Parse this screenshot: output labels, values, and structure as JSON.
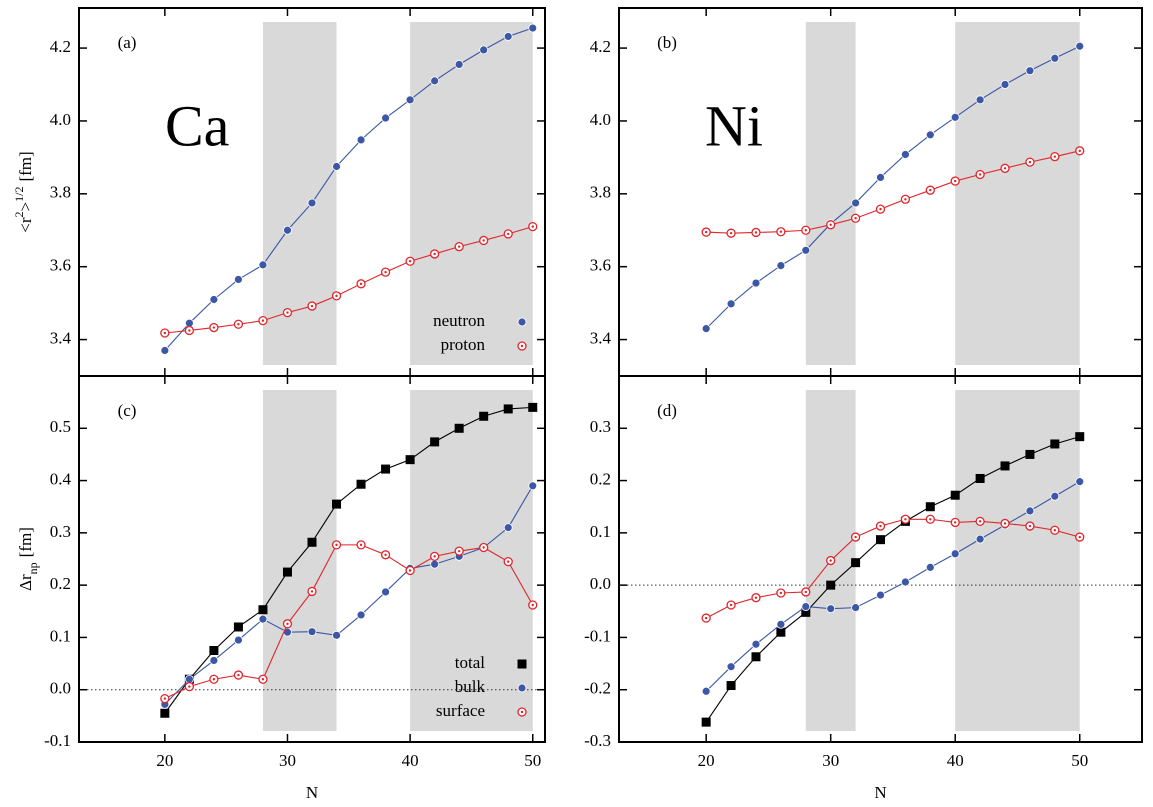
{
  "chart_data": [
    {
      "type": "line",
      "panel_label": "(a)",
      "element": "Ca",
      "ylabel": [
        "<r",
        "2",
        ">",
        "1/2",
        "[fm]"
      ],
      "x": [
        20,
        22,
        24,
        26,
        28,
        30,
        32,
        34,
        36,
        38,
        40,
        42,
        44,
        46,
        48,
        50
      ],
      "xlim": [
        13,
        51
      ],
      "xticks": [
        20,
        30,
        40,
        50
      ],
      "xtick_labels": false,
      "ylim": [
        3.3,
        4.31
      ],
      "yticks": [
        4.2,
        {
          "value": 4,
          "label": "4.0"
        },
        3.8,
        3.6,
        3.4
      ],
      "shaded": [
        [
          28,
          34
        ],
        [
          40,
          50
        ]
      ],
      "legend": "lower right",
      "series": [
        {
          "name": "neutron",
          "color": "#3b57a6",
          "marker": "circle-filled",
          "values": [
            3.37,
            3.445,
            3.51,
            3.565,
            3.605,
            3.7,
            3.775,
            3.875,
            3.948,
            4.008,
            4.058,
            4.11,
            4.155,
            4.195,
            4.232,
            4.255
          ]
        },
        {
          "name": "proton",
          "color": "#e0262b",
          "marker": "circle-dot",
          "values": [
            3.418,
            3.425,
            3.433,
            3.442,
            3.452,
            3.474,
            3.492,
            3.52,
            3.553,
            3.585,
            3.615,
            3.635,
            3.655,
            3.672,
            3.69,
            3.71
          ]
        }
      ]
    },
    {
      "type": "line",
      "panel_label": "(b)",
      "element": "Ni",
      "x": [
        20,
        22,
        24,
        26,
        28,
        30,
        32,
        34,
        36,
        38,
        40,
        42,
        44,
        46,
        48,
        50
      ],
      "xlim": [
        13,
        55
      ],
      "xticks": [
        20,
        30,
        40,
        50
      ],
      "xtick_labels": false,
      "ylim": [
        3.3,
        4.31
      ],
      "yticks": [
        4.2,
        {
          "value": 4,
          "label": "4.0"
        },
        3.8,
        3.6,
        3.4
      ],
      "shaded": [
        [
          28,
          32
        ],
        [
          40,
          50
        ]
      ],
      "series": [
        {
          "color": "#3b57a6",
          "marker": "circle-filled",
          "values": [
            3.43,
            3.498,
            3.555,
            3.603,
            3.645,
            3.718,
            3.775,
            3.845,
            3.908,
            3.962,
            4.01,
            4.058,
            4.1,
            4.138,
            4.172,
            4.205
          ]
        },
        {
          "color": "#e0262b",
          "marker": "circle-dot",
          "values": [
            3.695,
            3.692,
            3.694,
            3.696,
            3.7,
            3.715,
            3.733,
            3.758,
            3.785,
            3.81,
            3.835,
            3.853,
            3.87,
            3.887,
            3.902,
            3.918
          ]
        }
      ]
    },
    {
      "type": "line",
      "panel_label": "(c)",
      "ylabel": [
        "Δr",
        "np",
        "[fm]"
      ],
      "xlabel": "N",
      "x": [
        20,
        22,
        24,
        26,
        28,
        30,
        32,
        34,
        36,
        38,
        40,
        42,
        44,
        46,
        48,
        50
      ],
      "xlim": [
        13,
        51
      ],
      "xticks": [
        20,
        30,
        40,
        50
      ],
      "xtick_labels": true,
      "ylim": [
        -0.1,
        0.6
      ],
      "yticks": [
        0.5,
        0.4,
        0.3,
        0.2,
        0.1,
        {
          "value": 0,
          "label": "0.0"
        },
        -0.1
      ],
      "shaded": [
        [
          28,
          34
        ],
        [
          40,
          50
        ]
      ],
      "hline": 0,
      "legend": "lower right",
      "series": [
        {
          "name": "total",
          "color": "#000000",
          "marker": "square",
          "values": [
            -0.045,
            0.02,
            0.075,
            0.12,
            0.153,
            0.225,
            0.282,
            0.355,
            0.393,
            0.422,
            0.44,
            0.474,
            0.5,
            0.523,
            0.537,
            0.54
          ]
        },
        {
          "name": "bulk",
          "color": "#3b57a6",
          "marker": "circle-filled",
          "values": [
            -0.028,
            0.02,
            0.056,
            0.095,
            0.135,
            0.11,
            0.111,
            0.104,
            0.143,
            0.187,
            0.232,
            0.24,
            0.255,
            0.272,
            0.31,
            0.39
          ]
        },
        {
          "name": "surface",
          "color": "#e0262b",
          "marker": "circle-dot",
          "values": [
            -0.017,
            0.006,
            0.02,
            0.028,
            0.02,
            0.126,
            0.188,
            0.277,
            0.277,
            0.258,
            0.228,
            0.255,
            0.265,
            0.272,
            0.245,
            0.162
          ]
        }
      ]
    },
    {
      "type": "line",
      "panel_label": "(d)",
      "xlabel": "N",
      "x": [
        20,
        22,
        24,
        26,
        28,
        30,
        32,
        34,
        36,
        38,
        40,
        42,
        44,
        46,
        48,
        50
      ],
      "xlim": [
        13,
        55
      ],
      "xticks": [
        20,
        30,
        40,
        50
      ],
      "xtick_labels": true,
      "ylim": [
        -0.3,
        0.4
      ],
      "yticks": [
        0.3,
        0.2,
        0.1,
        {
          "value": 0,
          "label": "0.0"
        },
        -0.1,
        -0.2,
        -0.3
      ],
      "shaded": [
        [
          28,
          32
        ],
        [
          40,
          50
        ]
      ],
      "hline": 0,
      "series": [
        {
          "color": "#000000",
          "marker": "square",
          "values": [
            -0.262,
            -0.192,
            -0.137,
            -0.09,
            -0.052,
            0.0,
            0.043,
            0.087,
            0.122,
            0.15,
            0.172,
            0.204,
            0.228,
            0.25,
            0.27,
            0.284
          ]
        },
        {
          "color": "#3b57a6",
          "marker": "circle-filled",
          "values": [
            -0.203,
            -0.156,
            -0.113,
            -0.075,
            -0.041,
            -0.045,
            -0.043,
            -0.019,
            0.006,
            0.034,
            0.06,
            0.088,
            0.115,
            0.142,
            0.17,
            0.198
          ]
        },
        {
          "color": "#e0262b",
          "marker": "circle-dot",
          "values": [
            -0.063,
            -0.038,
            -0.024,
            -0.015,
            -0.013,
            0.047,
            0.092,
            0.113,
            0.126,
            0.126,
            0.12,
            0.122,
            0.118,
            0.113,
            0.105,
            0.092
          ]
        }
      ]
    }
  ]
}
